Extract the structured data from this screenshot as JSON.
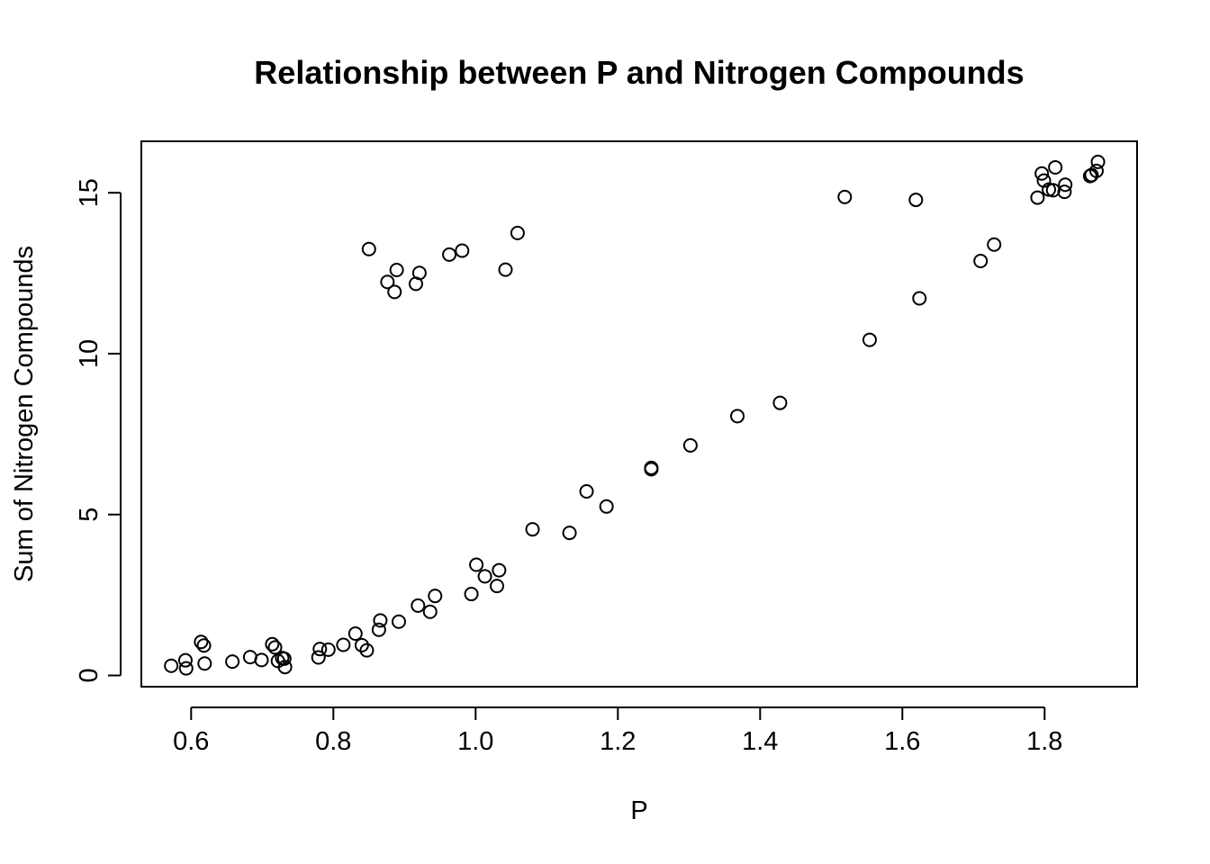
{
  "chart_data": {
    "type": "scatter",
    "title": "Relationship between P and Nitrogen Compounds",
    "xlabel": "P",
    "ylabel": "Sum of Nitrogen Compounds",
    "xlim": [
      0.53,
      1.93
    ],
    "ylim": [
      -0.35,
      16.6
    ],
    "x_ticks": [
      0.6,
      0.8,
      1.0,
      1.2,
      1.4,
      1.6,
      1.8
    ],
    "x_tick_labels": [
      "0.6",
      "0.8",
      "1.0",
      "1.2",
      "1.4",
      "1.6",
      "1.8"
    ],
    "y_ticks": [
      0,
      5,
      10,
      15
    ],
    "y_tick_labels": [
      "0",
      "5",
      "10",
      "15"
    ],
    "grid": false,
    "legend": "none",
    "marker": "open-circle",
    "x": [
      0.572,
      0.592,
      0.593,
      0.614,
      0.618,
      0.619,
      0.658,
      0.683,
      0.699,
      0.714,
      0.718,
      0.722,
      0.728,
      0.731,
      0.732,
      0.779,
      0.781,
      0.793,
      0.814,
      0.831,
      0.84,
      0.847,
      0.864,
      0.866,
      0.892,
      0.919,
      0.936,
      0.943,
      0.994,
      1.001,
      1.013,
      1.03,
      1.033,
      1.08,
      1.132,
      1.156,
      1.184,
      1.247,
      1.247,
      1.302,
      1.368,
      1.428,
      0.85,
      0.876,
      0.886,
      0.889,
      0.916,
      0.921,
      0.963,
      0.981,
      1.042,
      1.059,
      1.519,
      1.554,
      1.619,
      1.624,
      1.71,
      1.729,
      1.79,
      1.796,
      1.799,
      1.806,
      1.812,
      1.815,
      1.828,
      1.829,
      1.864,
      1.866,
      1.873,
      1.875
    ],
    "y": [
      0.3,
      0.47,
      0.22,
      1.04,
      0.93,
      0.37,
      0.43,
      0.57,
      0.48,
      0.97,
      0.87,
      0.45,
      0.54,
      0.52,
      0.26,
      0.56,
      0.82,
      0.8,
      0.95,
      1.3,
      0.94,
      0.78,
      1.42,
      1.71,
      1.67,
      2.17,
      1.98,
      2.47,
      2.53,
      3.44,
      3.08,
      2.78,
      3.27,
      4.54,
      4.43,
      5.72,
      5.25,
      6.41,
      6.45,
      7.15,
      8.06,
      8.47,
      13.25,
      12.23,
      11.92,
      12.6,
      12.17,
      12.51,
      13.08,
      13.2,
      12.61,
      13.75,
      14.87,
      10.43,
      14.78,
      11.72,
      12.88,
      13.39,
      14.85,
      15.6,
      15.38,
      15.1,
      15.08,
      15.79,
      15.03,
      15.25,
      15.52,
      15.55,
      15.68,
      15.96
    ]
  }
}
